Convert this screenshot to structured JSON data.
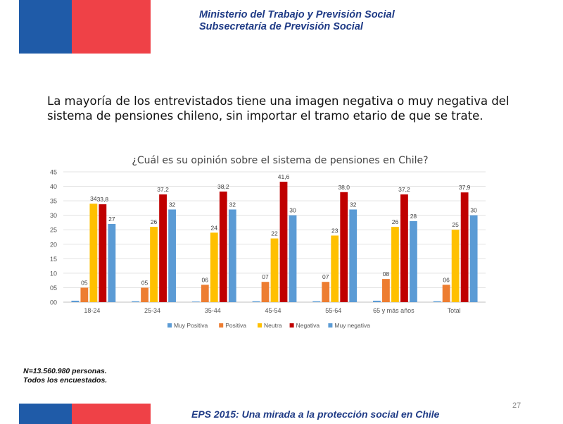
{
  "header": {
    "org_line1": "Ministerio  del Trabajo y Previsión  Social",
    "org_line2": "Subsecretaría  de Previsión  Social"
  },
  "headline": {
    "line1": "La mayoría de los entrevistados tiene una imagen negativa o muy negativa del",
    "line2": "sistema de pensiones chileno, sin importar el tramo etario de que se trate."
  },
  "chart_data": {
    "type": "bar",
    "title": "¿Cuál es su opinión sobre el sistema de pensiones en Chile?",
    "xlabel": "",
    "ylabel": "",
    "ylim": [
      0,
      45
    ],
    "yticks": [
      "00",
      "05",
      "10",
      "15",
      "20",
      "25",
      "30",
      "35",
      "40",
      "45"
    ],
    "grid": true,
    "legend_position": "bottom",
    "categories": [
      "18-24",
      "25-34",
      "35-44",
      "45-54",
      "55-64",
      "65 y más años",
      "Total"
    ],
    "series": [
      {
        "name": "Muy Positiva",
        "color": "#5b9bd5",
        "values": [
          0.5,
          0.3,
          0.2,
          0.3,
          0.3,
          0.5,
          0.3
        ],
        "labels": [
          "",
          "",
          "",
          "",
          "",
          "",
          ""
        ]
      },
      {
        "name": "Positiva",
        "color": "#ed7d31",
        "values": [
          5,
          5,
          6,
          7,
          7,
          8,
          6
        ],
        "labels": [
          "05",
          "05",
          "06",
          "07",
          "07",
          "08",
          "06"
        ]
      },
      {
        "name": "Neutra",
        "color": "#ffc000",
        "values": [
          34,
          26,
          24,
          22,
          23,
          26,
          25
        ],
        "labels": [
          "34",
          "26",
          "24",
          "22",
          "23",
          "26",
          "25"
        ]
      },
      {
        "name": "Negativa",
        "color": "#c00000",
        "values": [
          33.8,
          37.2,
          38.2,
          41.6,
          38.0,
          37.2,
          37.9
        ],
        "labels": [
          "33,8",
          "37,2",
          "38,2",
          "41,6",
          "38,0",
          "37,2",
          "37,9"
        ]
      },
      {
        "name": "Muy negativa",
        "color": "#5b9bd5",
        "values": [
          27,
          32,
          32,
          30,
          32,
          28,
          30
        ],
        "labels": [
          "27",
          "32",
          "32",
          "30",
          "32",
          "28",
          "30"
        ]
      }
    ]
  },
  "notes": {
    "line1": "N=13.560.980 personas.",
    "line2": "Todos los encuestados."
  },
  "footer": {
    "page_number": "27",
    "title": "EPS 2015: Una mirada a la protección social en Chile"
  },
  "colors": {
    "flag_blue": "#1f5ba8",
    "flag_red": "#ef4147",
    "brand_text": "#1f3b86"
  }
}
